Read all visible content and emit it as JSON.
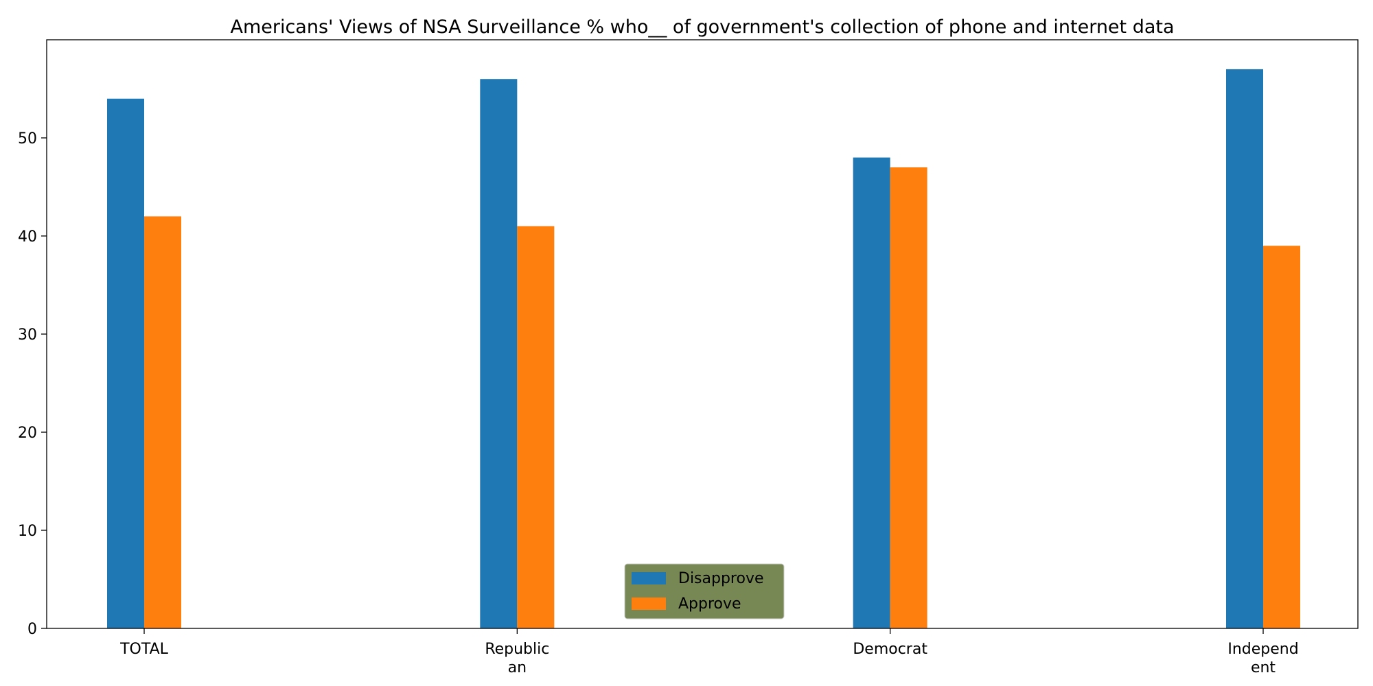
{
  "chart_data": {
    "type": "bar",
    "title": "Americans' Views of NSA Surveillance % who__ of government's collection of phone and internet data",
    "xlabel": "",
    "ylabel": "",
    "categories": [
      [
        "TOTAL"
      ],
      [
        "Republic",
        "an"
      ],
      [
        "Democrat"
      ],
      [
        "Independ",
        "ent"
      ]
    ],
    "series": [
      {
        "name": "Disapprove",
        "color": "#1f77b4",
        "values": [
          54,
          56,
          48,
          57
        ]
      },
      {
        "name": "Approve",
        "color": "#ff7f0e",
        "values": [
          42,
          41,
          47,
          39
        ]
      }
    ],
    "ylim": [
      0,
      60
    ],
    "yticks": [
      "0",
      "10",
      "20",
      "30",
      "40",
      "50"
    ],
    "grid": false,
    "legend": {
      "placement": "bottom-center",
      "background": "#778855"
    }
  }
}
